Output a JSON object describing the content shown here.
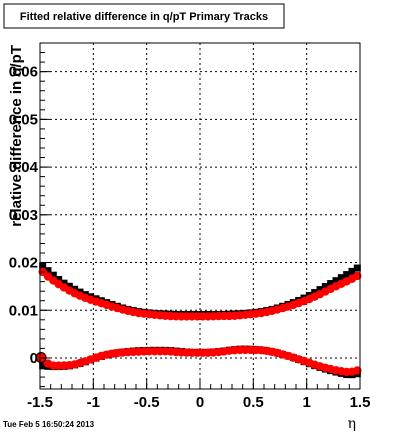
{
  "chart_data": {
    "type": "scatter",
    "title": "Fitted relative difference in q/pT  Primary Tracks",
    "xlabel": "η",
    "ylabel": "relative difference in q/pT",
    "timestamp": "Tue Feb  5 16:50:24 2013",
    "xlim": [
      -1.5,
      1.5
    ],
    "ylim": [
      -0.0065,
      0.066
    ],
    "x_ticks": [
      "-1.5",
      "-1",
      "-0.5",
      "0",
      "0.5",
      "1",
      "1.5"
    ],
    "x_tick_values": [
      -1.5,
      -1,
      -0.5,
      0,
      0.5,
      1,
      1.5
    ],
    "y_ticks": [
      "0",
      "0.01",
      "0.02",
      "0.03",
      "0.04",
      "0.05",
      "0.06"
    ],
    "y_tick_values": [
      0,
      0.01,
      0.02,
      0.03,
      0.04,
      0.05,
      0.06
    ],
    "grid": true,
    "colors": {
      "black_series": "#000000",
      "red_series": "#ff0000"
    },
    "x": [
      -1.5,
      -1.4,
      -1.3,
      -1.2,
      -1.1,
      -1.0,
      -0.9,
      -0.8,
      -0.7,
      -0.6,
      -0.5,
      -0.4,
      -0.3,
      -0.2,
      -0.1,
      0.0,
      0.1,
      0.2,
      0.3,
      0.4,
      0.5,
      0.6,
      0.7,
      0.8,
      0.9,
      1.0,
      1.1,
      1.2,
      1.3,
      1.4,
      1.5
    ],
    "series": [
      {
        "color": "black",
        "group": "upper",
        "values": [
          0.0198,
          0.0178,
          0.016,
          0.0147,
          0.0135,
          0.0126,
          0.0118,
          0.011,
          0.0103,
          0.0098,
          0.0095,
          0.0093,
          0.0092,
          0.0091,
          0.0091,
          0.0091,
          0.0091,
          0.0091,
          0.0092,
          0.0093,
          0.0095,
          0.0098,
          0.0103,
          0.011,
          0.0118,
          0.0128,
          0.014,
          0.0153,
          0.0165,
          0.0178,
          0.0192
        ]
      },
      {
        "color": "red",
        "group": "upper",
        "values": [
          0.0185,
          0.0166,
          0.0151,
          0.0138,
          0.0128,
          0.012,
          0.0113,
          0.0106,
          0.01,
          0.0095,
          0.0092,
          0.009,
          0.0088,
          0.0087,
          0.0087,
          0.0087,
          0.0087,
          0.0088,
          0.0088,
          0.009,
          0.0092,
          0.0095,
          0.01,
          0.0106,
          0.0113,
          0.0121,
          0.0131,
          0.0142,
          0.0153,
          0.0163,
          0.0175
        ]
      },
      {
        "color": "black",
        "group": "lower",
        "values": [
          -0.0016,
          -0.0018,
          -0.0018,
          -0.0016,
          -0.001,
          -0.0002,
          0.0005,
          0.001,
          0.0013,
          0.0015,
          0.0016,
          0.0016,
          0.0016,
          0.0014,
          0.0012,
          0.0011,
          0.0012,
          0.0014,
          0.0017,
          0.0019,
          0.0018,
          0.0016,
          0.0012,
          0.0006,
          -0.0001,
          -0.001,
          -0.0018,
          -0.0025,
          -0.0031,
          -0.0036,
          -0.0032
        ]
      },
      {
        "color": "red",
        "group": "lower",
        "values": [
          0.0001,
          -0.0016,
          -0.0016,
          -0.0015,
          -0.0009,
          -0.0001,
          0.0006,
          0.001,
          0.0012,
          0.0013,
          0.0014,
          0.0014,
          0.0014,
          0.0012,
          0.0011,
          0.0011,
          0.0011,
          0.0013,
          0.0016,
          0.0017,
          0.0017,
          0.0016,
          0.0012,
          0.0006,
          -0.0001,
          -0.0008,
          -0.0016,
          -0.0022,
          -0.0027,
          -0.003,
          -0.0025
        ]
      }
    ]
  }
}
